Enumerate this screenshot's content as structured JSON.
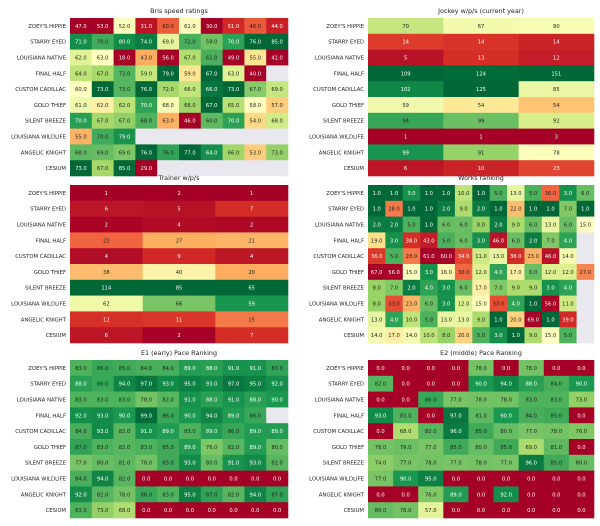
{
  "chart_data": [
    {
      "type": "heatmap",
      "title": "Bris speed ratings",
      "rows": [
        "ZOEY'S HIPPIE",
        "STARRY EYED",
        "LOUISIANA NATIVE",
        "FINAL HALF",
        "CUSTOM CADILLAC",
        "GOLD THIEF",
        "SILENT BREEZE",
        "LOUISIANA WILDLIFE",
        "ANGELIC KNIGHT",
        "CESIUM"
      ],
      "values": [
        [
          47.0,
          53.0,
          52.0,
          31.0,
          60.0,
          61.0,
          30.0,
          51.0,
          46.0,
          44.0
        ],
        [
          71.0,
          70.0,
          80.0,
          74.0,
          69.0,
          72.0,
          59.0,
          70.0,
          76.0,
          85.0
        ],
        [
          62.0,
          63.0,
          18.0,
          43.0,
          56.0,
          67.0,
          61.0,
          49.0,
          55.0,
          41.0
        ],
        [
          64.0,
          67.0,
          73.0,
          59.0,
          79.0,
          59.0,
          67.0,
          63.0,
          40.0,
          null
        ],
        [
          60.0,
          73.0,
          73.0,
          76.0,
          72.0,
          66.0,
          66.0,
          73.0,
          67.0,
          69.0
        ],
        [
          61.0,
          62.0,
          62.0,
          70.0,
          68.0,
          68.0,
          67.0,
          65.0,
          58.0,
          57.0
        ],
        [
          70.0,
          67.0,
          67.0,
          68.0,
          63.0,
          46.0,
          60.0,
          70.0,
          54.0,
          68.0
        ],
        [
          55.0,
          70.0,
          79.0,
          null,
          null,
          null,
          null,
          null,
          null,
          null
        ],
        [
          68.0,
          69.0,
          69.0,
          76.0,
          76.0,
          77.0,
          64.0,
          66.0,
          53.0,
          73.0
        ],
        [
          73.0,
          67.0,
          85.0,
          29.0,
          null,
          null,
          null,
          null,
          null,
          null
        ]
      ]
    },
    {
      "type": "heatmap",
      "title": "Jockey w/p/s (current year)",
      "rows": [
        "ZOEY'S HIPPIE",
        "STARRY EYED",
        "LOUISIANA NATIVE",
        "FINAL HALF",
        "CUSTOM CADILLAC",
        "GOLD THIEF",
        "SILENT BREEZE",
        "LOUISIANA WILDLIFE",
        "ANGELIC KNIGHT",
        "CESIUM"
      ],
      "values": [
        [
          70,
          67,
          80
        ],
        [
          14,
          14,
          14
        ],
        [
          5,
          13,
          12
        ],
        [
          109,
          124,
          151
        ],
        [
          102,
          125,
          85
        ],
        [
          59,
          54,
          54
        ],
        [
          94,
          99,
          92
        ],
        [
          1,
          1,
          3
        ],
        [
          99,
          91,
          78
        ],
        [
          6,
          10,
          23
        ]
      ]
    },
    {
      "type": "heatmap",
      "title": "Trainer w/p/s",
      "rows": [
        "ZOEY'S HIPPIE",
        "STARRY EYED",
        "LOUISIANA NATIVE",
        "FINAL HALF",
        "CUSTOM CADILLAC",
        "GOLD THIEF",
        "SILENT BREEZE",
        "LOUISIANA WILDLIFE",
        "ANGELIC KNIGHT",
        "CESIUM"
      ],
      "values": [
        [
          1,
          2,
          1
        ],
        [
          6,
          5,
          7
        ],
        [
          2,
          4,
          2
        ],
        [
          22,
          27,
          21
        ],
        [
          4,
          9,
          4
        ],
        [
          38,
          40,
          20
        ],
        [
          114,
          85,
          65
        ],
        [
          62,
          66,
          59
        ],
        [
          12,
          11,
          15
        ],
        [
          6,
          2,
          7
        ]
      ]
    },
    {
      "type": "heatmap",
      "title": "Works ranking",
      "rows": [
        "ZOEY'S HIPPIE",
        "STARRY EYED",
        "LOUISIANA NATIVE",
        "FINAL HALF",
        "CUSTOM CADILLAC",
        "GOLD THIEF",
        "SILENT BREEZE",
        "LOUISIANA WILDLIFE",
        "ANGELIC KNIGHT",
        "CESIUM"
      ],
      "values": [
        [
          1.0,
          1.0,
          3.0,
          1.0,
          1.0,
          10.0,
          1.0,
          5.0,
          13.0,
          5.0,
          30.0,
          3.0,
          6.0
        ],
        [
          1.0,
          28.0,
          1.0,
          1.0,
          2.0,
          9.0,
          2.0,
          1.0,
          22.0,
          1.0,
          1.0,
          7.0,
          1.0
        ],
        [
          2.0,
          2.0,
          5.0,
          1.0,
          6.0,
          6.0,
          8.0,
          2.0,
          9.0,
          6.0,
          13.0,
          6.0,
          15.0
        ],
        [
          19.0,
          3.0,
          38.0,
          43.0,
          5.0,
          6.0,
          3.0,
          46.0,
          6.0,
          2.0,
          7.0,
          4.0,
          null
        ],
        [
          36.0,
          5.0,
          28.0,
          61.0,
          60.0,
          34.0,
          11.0,
          13.0,
          38.0,
          23.0,
          46.0,
          14.0,
          null
        ],
        [
          67.0,
          56.0,
          15.0,
          3.0,
          16.0,
          30.0,
          12.0,
          4.0,
          17.0,
          6.0,
          12.0,
          12.0,
          27.0
        ],
        [
          8.0,
          7.0,
          2.0,
          4.0,
          3.0,
          6.0,
          17.0,
          7.0,
          9.0,
          9.0,
          3.0,
          4.0,
          null
        ],
        [
          8.0,
          33.0,
          23.0,
          6.0,
          3.0,
          12.0,
          15.0,
          33.0,
          4.0,
          1.0,
          56.0,
          11.0,
          null
        ],
        [
          13.0,
          4.0,
          10.0,
          5.0,
          13.0,
          13.0,
          9.0,
          1.0,
          20.0,
          69.0,
          1.0,
          39.0,
          null
        ],
        [
          14.0,
          17.0,
          14.0,
          10.0,
          8.0,
          20.0,
          5.0,
          3.0,
          1.0,
          9.0,
          15.0,
          5.0,
          null
        ]
      ]
    },
    {
      "type": "heatmap",
      "title": "E1 (early) Pace Ranking",
      "rows": [
        "ZOEY'S HIPPIE",
        "STARRY EYED",
        "LOUISIANA NATIVE",
        "FINAL HALF",
        "CUSTOM CADILLAC",
        "GOLD THIEF",
        "SILENT BREEZE",
        "LOUISIANA WILDLIFE",
        "ANGELIC KNIGHT",
        "CESIUM"
      ],
      "values": [
        [
          83.0,
          86.0,
          85.0,
          84.0,
          84.0,
          89.0,
          88.0,
          91.0,
          91.0,
          87.0
        ],
        [
          88.0,
          86.0,
          94.0,
          97.0,
          93.0,
          95.0,
          93.0,
          97.0,
          95.0,
          92.0
        ],
        [
          83.0,
          83.0,
          83.0,
          78.0,
          82.0,
          91.0,
          88.0,
          91.0,
          88.0,
          90.0
        ],
        [
          92.0,
          93.0,
          90.0,
          99.0,
          86.0,
          90.0,
          94.0,
          89.0,
          86.0,
          null
        ],
        [
          84.0,
          93.0,
          82.0,
          91.0,
          89.0,
          83.0,
          89.0,
          86.0,
          89.0,
          89.0
        ],
        [
          87.0,
          83.0,
          82.0,
          83.0,
          85.0,
          89.0,
          76.0,
          82.0,
          89.0,
          80.0
        ],
        [
          77.0,
          80.0,
          81.0,
          78.0,
          85.0,
          93.0,
          80.0,
          91.0,
          93.0,
          82.0
        ],
        [
          84.0,
          94.0,
          82.0,
          0.0,
          0.0,
          0.0,
          0.0,
          0.0,
          0.0,
          0.0
        ],
        [
          92.0,
          82.0,
          78.0,
          86.0,
          83.0,
          95.0,
          87.0,
          82.0,
          94.0,
          87.0
        ],
        [
          83.0,
          73.0,
          68.0,
          0.0,
          0.0,
          0.0,
          0.0,
          0.0,
          0.0,
          0.0
        ]
      ]
    },
    {
      "type": "heatmap",
      "title": "E2 (middle) Pace Ranking",
      "rows": [
        "ZOEY'S HIPPIE",
        "STARRY EYED",
        "LOUISIANA NATIVE",
        "FINAL HALF",
        "CUSTOM CADILLAC",
        "GOLD THIEF",
        "SILENT BREEZE",
        "LOUISIANA WILDLIFE",
        "ANGELIC KNIGHT",
        "CESIUM"
      ],
      "values": [
        [
          0.0,
          0.0,
          0.0,
          0.0,
          78.0,
          0.0,
          78.0,
          0.0,
          0.0
        ],
        [
          82.0,
          0.0,
          0.0,
          0.0,
          90.0,
          94.0,
          88.0,
          84.0,
          90.0
        ],
        [
          0.0,
          0.0,
          86.0,
          77.0,
          78.0,
          78.0,
          83.0,
          83.0,
          73.0
        ],
        [
          93.0,
          83.0,
          0.0,
          97.0,
          81.0,
          90.0,
          84.0,
          85.0,
          0.0
        ],
        [
          0.0,
          68.0,
          82.0,
          96.0,
          85.0,
          80.0,
          77.0,
          78.0,
          76.0
        ],
        [
          78.0,
          79.0,
          77.0,
          85.0,
          80.0,
          85.0,
          69.0,
          81.0,
          0.0
        ],
        [
          74.0,
          77.0,
          78.0,
          77.0,
          78.0,
          77.0,
          96.0,
          85.0,
          80.0
        ],
        [
          77.0,
          90.0,
          95.0,
          0.0,
          0.0,
          0.0,
          0.0,
          0.0,
          0.0
        ],
        [
          0.0,
          0.0,
          76.0,
          89.0,
          0.0,
          92.0,
          0.0,
          0.0,
          0.0
        ],
        [
          80.0,
          78.0,
          57.0,
          0.0,
          0.0,
          0.0,
          0.0,
          0.0,
          0.0
        ]
      ]
    }
  ]
}
